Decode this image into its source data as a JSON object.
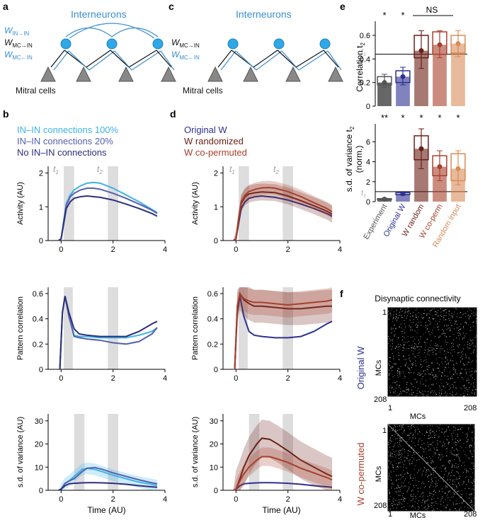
{
  "colors": {
    "in100": "#3db3e6",
    "in20": "#5560b0",
    "noin": "#2b2f7a",
    "orig": "#2d3191",
    "rand": "#6b1f16",
    "coperm": "#a8402c",
    "randin": "#d98a56",
    "exp": "#555555",
    "blue": "#3a8fd0",
    "gray": "#cfcfcf"
  },
  "panels": {
    "a": {
      "letter": "a",
      "title": "Interneurons",
      "w_inin": "W",
      "w_inin_sub": "IN→IN",
      "w_mcin": "W",
      "w_mcin_sub": "MC→IN",
      "w_inmc": "W",
      "w_inmc_sub": "MC←IN",
      "mitral": "Mitral cells"
    },
    "c": {
      "letter": "c",
      "title": "Interneurons",
      "w_mcin": "W",
      "w_mcin_sub": "MC→IN",
      "w_inmc": "W",
      "w_inmc_sub": "MC←IN",
      "mitral": "Mitral cells"
    },
    "b": {
      "letter": "b",
      "legend": [
        "IN–IN connections 100%",
        "IN–IN connections 20%",
        "No IN–IN connections"
      ],
      "t1": "t",
      "t1_sub": "1",
      "t2": "t",
      "t2_sub": "2"
    },
    "d": {
      "letter": "d",
      "legend": [
        "Original W",
        "W randomized",
        "W co-permuted"
      ],
      "t1": "t",
      "t1_sub": "1",
      "t2": "t",
      "t2_sub": "2"
    },
    "e": {
      "letter": "e",
      "ylabel_top": "Correlation t",
      "ylabel_top_sub": "2",
      "ylabel_bot1": "s.d. of variance t",
      "ylabel_bot_sub": "2",
      "ylabel_bot2": "(norm.)",
      "ns": "NS",
      "t1_label": "t",
      "t1_sub": "1"
    },
    "f": {
      "letter": "f",
      "title": "Disynaptic connectivity",
      "row1_label": "Original W",
      "row2_label": "W co-permuted",
      "axis_label": "MCs",
      "tick_start": "1",
      "tick_end": "208"
    }
  },
  "chart_data": [
    {
      "id": "b-activity",
      "type": "line",
      "ylabel": "Activity (AU)",
      "xlabel": "",
      "ylim": [
        0,
        2.2
      ],
      "xlim": [
        -0.5,
        4
      ],
      "yticks": [
        0,
        1,
        2
      ],
      "xticks": [
        0,
        2,
        4
      ],
      "shade": [
        [
          0.1,
          0.5
        ],
        [
          1.8,
          2.2
        ]
      ],
      "series": [
        {
          "name": "IN–IN connections 100%",
          "color": "#3db3e6",
          "x": [
            -0.1,
            0,
            0.1,
            0.2,
            0.35,
            0.5,
            0.75,
            1,
            1.25,
            1.5,
            2,
            2.5,
            3,
            3.5,
            3.7
          ],
          "y": [
            0,
            0.05,
            0.6,
            1.1,
            1.35,
            1.5,
            1.62,
            1.7,
            1.72,
            1.7,
            1.55,
            1.35,
            1.15,
            0.92,
            0.83
          ]
        },
        {
          "name": "IN–IN connections 20%",
          "color": "#5560b0",
          "x": [
            -0.1,
            0,
            0.1,
            0.2,
            0.35,
            0.5,
            0.75,
            1,
            1.25,
            1.5,
            2,
            2.5,
            3,
            3.5,
            3.7
          ],
          "y": [
            0,
            0.05,
            0.55,
            1.05,
            1.3,
            1.4,
            1.5,
            1.55,
            1.55,
            1.52,
            1.4,
            1.25,
            1.08,
            0.9,
            0.8
          ]
        },
        {
          "name": "No IN–IN connections",
          "color": "#2b2f7a",
          "x": [
            -0.1,
            0,
            0.1,
            0.2,
            0.35,
            0.5,
            0.75,
            1,
            1.25,
            1.5,
            2,
            2.5,
            3,
            3.5,
            3.7
          ],
          "y": [
            0,
            0.05,
            0.5,
            0.95,
            1.15,
            1.25,
            1.3,
            1.32,
            1.3,
            1.28,
            1.2,
            1.08,
            0.95,
            0.8,
            0.72
          ]
        }
      ]
    },
    {
      "id": "b-correlation",
      "type": "line",
      "ylabel": "Pattern correlation",
      "xlabel": "",
      "ylim": [
        0,
        0.65
      ],
      "xlim": [
        -0.5,
        4
      ],
      "yticks": [
        0,
        0.2,
        0.4,
        0.6
      ],
      "xticks": [
        0,
        2,
        4
      ],
      "shade": [
        [
          0.1,
          0.45
        ],
        [
          1.8,
          2.2
        ]
      ],
      "series": [
        {
          "name": "IN–IN connections 100%",
          "color": "#3db3e6",
          "x": [
            -0.05,
            0.05,
            0.15,
            0.3,
            0.5,
            0.7,
            1,
            1.5,
            2,
            2.5,
            3,
            3.5,
            3.7
          ],
          "y": [
            0,
            0.45,
            0.58,
            0.42,
            0.27,
            0.26,
            0.26,
            0.25,
            0.25,
            0.25,
            0.27,
            0.3,
            0.33
          ]
        },
        {
          "name": "IN–IN connections 20%",
          "color": "#5560b0",
          "x": [
            -0.05,
            0.05,
            0.15,
            0.3,
            0.5,
            0.7,
            1,
            1.5,
            2,
            2.5,
            3,
            3.5,
            3.7
          ],
          "y": [
            0,
            0.45,
            0.58,
            0.42,
            0.26,
            0.25,
            0.24,
            0.23,
            0.21,
            0.2,
            0.22,
            0.28,
            0.33
          ]
        },
        {
          "name": "No IN–IN connections",
          "color": "#2b2f7a",
          "x": [
            -0.05,
            0.05,
            0.15,
            0.3,
            0.5,
            0.7,
            1,
            1.5,
            2,
            2.5,
            3,
            3.5,
            3.7
          ],
          "y": [
            0,
            0.45,
            0.58,
            0.45,
            0.32,
            0.28,
            0.27,
            0.26,
            0.26,
            0.26,
            0.3,
            0.36,
            0.38
          ]
        }
      ]
    },
    {
      "id": "b-sd",
      "type": "line",
      "ylabel": "s.d. of variance (AU)",
      "xlabel": "Time (AU)",
      "ylim": [
        0,
        33
      ],
      "xlim": [
        -0.5,
        4
      ],
      "yticks": [
        0,
        10,
        20,
        30
      ],
      "xticks": [
        0,
        2,
        4
      ],
      "shade": [
        [
          0.5,
          0.9
        ],
        [
          1.8,
          2.2
        ]
      ],
      "series": [
        {
          "name": "IN–IN connections 100%",
          "color": "#3db3e6",
          "x": [
            -0.1,
            0,
            0.15,
            0.3,
            0.5,
            0.8,
            1,
            1.3,
            1.6,
            2,
            2.5,
            3,
            3.5,
            3.7
          ],
          "y": [
            0,
            0.5,
            3,
            4,
            6,
            9,
            9.5,
            9,
            8,
            6.5,
            5,
            3.5,
            2.5,
            2
          ],
          "band": 2.5
        },
        {
          "name": "IN–IN connections 20%",
          "color": "#5560b0",
          "x": [
            -0.1,
            0,
            0.15,
            0.3,
            0.5,
            0.8,
            1,
            1.3,
            1.6,
            2,
            2.5,
            3,
            3.5,
            3.7
          ],
          "y": [
            0,
            0.5,
            3,
            4,
            5,
            8,
            9.5,
            9.8,
            9,
            7.5,
            6,
            4.5,
            3.2,
            2.8
          ]
        },
        {
          "name": "No IN–IN connections",
          "color": "#2b2f7a",
          "x": [
            -0.1,
            0,
            0.15,
            0.3,
            0.5,
            0.8,
            1,
            1.3,
            1.6,
            2,
            2.5,
            3,
            3.5,
            3.7
          ],
          "y": [
            0,
            0.5,
            2,
            2.8,
            3,
            3.2,
            3.3,
            3.3,
            3.2,
            3,
            2.6,
            2,
            1.5,
            1.3
          ]
        }
      ]
    },
    {
      "id": "d-activity",
      "type": "line",
      "ylabel": "Activity (AU)",
      "xlabel": "",
      "ylim": [
        0,
        2.2
      ],
      "xlim": [
        -0.5,
        4
      ],
      "yticks": [
        0,
        1,
        2
      ],
      "xticks": [
        0,
        2,
        4
      ],
      "shade": [
        [
          0.1,
          0.5
        ],
        [
          1.8,
          2.2
        ]
      ],
      "series": [
        {
          "name": "Original W",
          "color": "#2d3191",
          "x": [
            -0.1,
            0,
            0.1,
            0.2,
            0.35,
            0.5,
            0.75,
            1,
            1.25,
            1.5,
            2,
            2.5,
            3,
            3.5,
            3.7
          ],
          "y": [
            0,
            0.05,
            0.5,
            0.95,
            1.15,
            1.25,
            1.3,
            1.32,
            1.3,
            1.28,
            1.2,
            1.08,
            0.95,
            0.8,
            0.72
          ]
        },
        {
          "name": "W randomized",
          "color": "#6b1f16",
          "x": [
            -0.1,
            0,
            0.1,
            0.2,
            0.35,
            0.5,
            0.75,
            1,
            1.25,
            1.5,
            2,
            2.5,
            3,
            3.5,
            3.7
          ],
          "y": [
            0,
            0.05,
            0.6,
            1.1,
            1.3,
            1.38,
            1.42,
            1.44,
            1.43,
            1.42,
            1.32,
            1.18,
            1.03,
            0.87,
            0.78
          ],
          "band": 0.25
        },
        {
          "name": "W co-permuted",
          "color": "#a8402c",
          "x": [
            -0.1,
            0,
            0.1,
            0.2,
            0.35,
            0.5,
            0.75,
            1,
            1.25,
            1.5,
            2,
            2.5,
            3,
            3.5,
            3.7
          ],
          "y": [
            0,
            0.05,
            0.65,
            1.15,
            1.35,
            1.45,
            1.52,
            1.56,
            1.57,
            1.55,
            1.45,
            1.3,
            1.12,
            0.95,
            0.85
          ],
          "band": 0.2
        }
      ]
    },
    {
      "id": "d-correlation",
      "type": "line",
      "ylabel": "Pattern correlation",
      "xlabel": "",
      "ylim": [
        0,
        0.65
      ],
      "xlim": [
        -0.5,
        4
      ],
      "yticks": [
        0,
        0.2,
        0.4,
        0.6
      ],
      "xticks": [
        0,
        2,
        4
      ],
      "shade": [
        [
          0.1,
          0.45
        ],
        [
          1.8,
          2.2
        ]
      ],
      "series": [
        {
          "name": "Original W",
          "color": "#2d3191",
          "x": [
            -0.05,
            0.05,
            0.15,
            0.3,
            0.5,
            0.7,
            1,
            1.5,
            2,
            2.5,
            3,
            3.5,
            3.7
          ],
          "y": [
            0,
            0.45,
            0.58,
            0.42,
            0.3,
            0.27,
            0.26,
            0.25,
            0.25,
            0.26,
            0.3,
            0.36,
            0.38
          ]
        },
        {
          "name": "W randomized",
          "color": "#6b1f16",
          "x": [
            -0.05,
            0.05,
            0.15,
            0.3,
            0.5,
            0.7,
            1,
            1.5,
            2,
            2.5,
            3,
            3.5,
            3.7
          ],
          "y": [
            0,
            0.5,
            0.6,
            0.55,
            0.52,
            0.5,
            0.5,
            0.49,
            0.48,
            0.48,
            0.49,
            0.5,
            0.5
          ],
          "band": 0.13
        },
        {
          "name": "W co-permuted",
          "color": "#a8402c",
          "x": [
            -0.05,
            0.05,
            0.15,
            0.3,
            0.5,
            0.7,
            1,
            1.5,
            2,
            2.5,
            3,
            3.5,
            3.7
          ],
          "y": [
            0,
            0.5,
            0.6,
            0.56,
            0.54,
            0.53,
            0.53,
            0.52,
            0.51,
            0.52,
            0.53,
            0.54,
            0.55
          ],
          "band": 0.1
        }
      ]
    },
    {
      "id": "d-sd",
      "type": "line",
      "ylabel": "s.d. of variance (AU)",
      "xlabel": "Time (AU)",
      "ylim": [
        0,
        33
      ],
      "xlim": [
        -0.5,
        4
      ],
      "yticks": [
        0,
        10,
        20,
        30
      ],
      "xticks": [
        0,
        2,
        4
      ],
      "shade": [
        [
          0.5,
          0.9
        ],
        [
          1.8,
          2.2
        ]
      ],
      "series": [
        {
          "name": "Original W",
          "color": "#2d3191",
          "x": [
            -0.1,
            0,
            0.15,
            0.3,
            0.5,
            0.8,
            1,
            1.3,
            1.6,
            2,
            2.5,
            3,
            3.5,
            3.7
          ],
          "y": [
            0,
            0.5,
            2,
            2.8,
            3,
            3.2,
            3.3,
            3.3,
            3.2,
            3,
            2.6,
            2,
            1.5,
            1.3
          ]
        },
        {
          "name": "W randomized",
          "color": "#6b1f16",
          "x": [
            -0.1,
            0,
            0.15,
            0.3,
            0.5,
            0.8,
            1,
            1.3,
            1.6,
            2,
            2.5,
            3,
            3.5,
            3.7
          ],
          "y": [
            0,
            0.5,
            5,
            10,
            15,
            20,
            22.5,
            22,
            20,
            17,
            13,
            10,
            7,
            6
          ],
          "band": 8
        },
        {
          "name": "W co-permuted",
          "color": "#a8402c",
          "x": [
            -0.1,
            0,
            0.15,
            0.3,
            0.5,
            0.8,
            1,
            1.3,
            1.6,
            2,
            2.5,
            3,
            3.5,
            3.7
          ],
          "y": [
            0,
            0.5,
            4,
            7,
            10,
            13,
            14.5,
            14.5,
            13.5,
            12,
            9.5,
            7.5,
            5.5,
            4.5
          ],
          "band": 4
        }
      ]
    },
    {
      "id": "e-correlation",
      "type": "bar",
      "ylabel": "Correlation t2",
      "ylim": [
        0,
        0.72
      ],
      "yticks": [
        0,
        0.2,
        0.4,
        0.6
      ],
      "refline": 0.44,
      "categories": [
        "Experiment",
        "Original W",
        "W random",
        "W co-perm",
        "Random input"
      ],
      "values": [
        0.2,
        0.25,
        0.47,
        0.52,
        0.53
      ],
      "box": [
        [
          0.18,
          0.25
        ],
        [
          0.2,
          0.3
        ],
        [
          0.41,
          0.6
        ],
        [
          0.44,
          0.63
        ],
        [
          0.45,
          0.6
        ]
      ],
      "whisk": [
        [
          0.16,
          0.27
        ],
        [
          0.18,
          0.33
        ],
        [
          0.32,
          0.64
        ],
        [
          0.41,
          0.64
        ],
        [
          0.42,
          0.64
        ]
      ],
      "colors": [
        "#555555",
        "#2d3191",
        "#6b1f16",
        "#a8402c",
        "#d98a56"
      ],
      "signif": [
        "*",
        "*",
        "",
        "",
        ""
      ]
    },
    {
      "id": "e-sd",
      "type": "bar",
      "ylabel": "s.d. of variance t2 (norm.)",
      "ylim": [
        0,
        7.8
      ],
      "yticks": [
        0,
        2,
        4,
        6
      ],
      "refline": 1,
      "categories": [
        "Experiment",
        "Original W",
        "W random",
        "W co-perm",
        "Random input"
      ],
      "values": [
        0.25,
        0.8,
        5.3,
        3.5,
        3.3
      ],
      "box": [
        [
          0.2,
          0.3
        ],
        [
          0.7,
          0.9
        ],
        [
          4.2,
          6.6
        ],
        [
          2.6,
          4.6
        ],
        [
          2.1,
          4.8
        ]
      ],
      "whisk": [
        [
          0.15,
          0.35
        ],
        [
          0.65,
          0.95
        ],
        [
          3.3,
          7.3
        ],
        [
          2.1,
          5.1
        ],
        [
          1.7,
          5.1
        ]
      ],
      "colors": [
        "#555555",
        "#2d3191",
        "#6b1f16",
        "#a8402c",
        "#d98a56"
      ],
      "signif": [
        "**",
        "*",
        "*",
        "*",
        "*"
      ]
    }
  ]
}
